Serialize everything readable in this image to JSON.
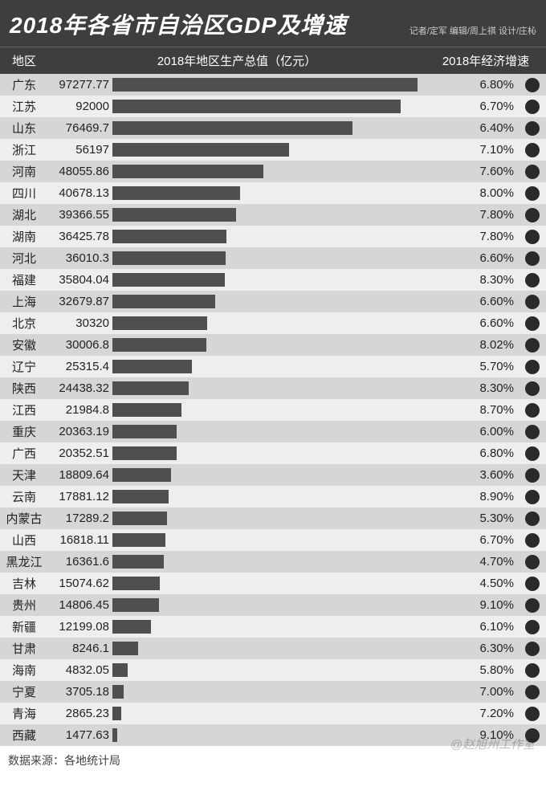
{
  "title": "2018年各省市自治区GDP及增速",
  "credits": "记者/定军  编辑/周上祺  设计/庄杺",
  "columns": {
    "region": "地区",
    "gdp": "2018年地区生产总值（亿元）",
    "growth": "2018年经济增速"
  },
  "bar_color": "#4f4f4f",
  "dot_color": "#2a2a2a",
  "row_colors": {
    "even": "#d6d6d6",
    "odd": "#eeeeee"
  },
  "title_bg": "#3e3e3e",
  "title_color": "#ffffff",
  "max_bar_value": 97277.77,
  "rows": [
    {
      "region": "广东",
      "gdp": "97277.77",
      "gdp_num": 97277.77,
      "growth": "6.80%"
    },
    {
      "region": "江苏",
      "gdp": "92000",
      "gdp_num": 92000,
      "growth": "6.70%"
    },
    {
      "region": "山东",
      "gdp": "76469.7",
      "gdp_num": 76469.7,
      "growth": "6.40%"
    },
    {
      "region": "浙江",
      "gdp": "56197",
      "gdp_num": 56197,
      "growth": "7.10%"
    },
    {
      "region": "河南",
      "gdp": "48055.86",
      "gdp_num": 48055.86,
      "growth": "7.60%"
    },
    {
      "region": "四川",
      "gdp": "40678.13",
      "gdp_num": 40678.13,
      "growth": "8.00%"
    },
    {
      "region": "湖北",
      "gdp": "39366.55",
      "gdp_num": 39366.55,
      "growth": "7.80%"
    },
    {
      "region": "湖南",
      "gdp": "36425.78",
      "gdp_num": 36425.78,
      "growth": "7.80%"
    },
    {
      "region": "河北",
      "gdp": "36010.3",
      "gdp_num": 36010.3,
      "growth": "6.60%"
    },
    {
      "region": "福建",
      "gdp": "35804.04",
      "gdp_num": 35804.04,
      "growth": "8.30%"
    },
    {
      "region": "上海",
      "gdp": "32679.87",
      "gdp_num": 32679.87,
      "growth": "6.60%"
    },
    {
      "region": "北京",
      "gdp": "30320",
      "gdp_num": 30320,
      "growth": "6.60%"
    },
    {
      "region": "安徽",
      "gdp": "30006.8",
      "gdp_num": 30006.8,
      "growth": "8.02%"
    },
    {
      "region": "辽宁",
      "gdp": "25315.4",
      "gdp_num": 25315.4,
      "growth": "5.70%"
    },
    {
      "region": "陕西",
      "gdp": "24438.32",
      "gdp_num": 24438.32,
      "growth": "8.30%"
    },
    {
      "region": "江西",
      "gdp": "21984.8",
      "gdp_num": 21984.8,
      "growth": "8.70%"
    },
    {
      "region": "重庆",
      "gdp": "20363.19",
      "gdp_num": 20363.19,
      "growth": "6.00%"
    },
    {
      "region": "广西",
      "gdp": "20352.51",
      "gdp_num": 20352.51,
      "growth": "6.80%"
    },
    {
      "region": "天津",
      "gdp": "18809.64",
      "gdp_num": 18809.64,
      "growth": "3.60%"
    },
    {
      "region": "云南",
      "gdp": "17881.12",
      "gdp_num": 17881.12,
      "growth": "8.90%"
    },
    {
      "region": "内蒙古",
      "gdp": "17289.2",
      "gdp_num": 17289.2,
      "growth": "5.30%"
    },
    {
      "region": "山西",
      "gdp": "16818.11",
      "gdp_num": 16818.11,
      "growth": "6.70%"
    },
    {
      "region": "黑龙江",
      "gdp": "16361.6",
      "gdp_num": 16361.6,
      "growth": "4.70%"
    },
    {
      "region": "吉林",
      "gdp": "15074.62",
      "gdp_num": 15074.62,
      "growth": "4.50%"
    },
    {
      "region": "贵州",
      "gdp": "14806.45",
      "gdp_num": 14806.45,
      "growth": "9.10%"
    },
    {
      "region": "新疆",
      "gdp": "12199.08",
      "gdp_num": 12199.08,
      "growth": "6.10%"
    },
    {
      "region": "甘肃",
      "gdp": "8246.1",
      "gdp_num": 8246.1,
      "growth": "6.30%"
    },
    {
      "region": "海南",
      "gdp": "4832.05",
      "gdp_num": 4832.05,
      "growth": "5.80%"
    },
    {
      "region": "宁夏",
      "gdp": "3705.18",
      "gdp_num": 3705.18,
      "growth": "7.00%"
    },
    {
      "region": "青海",
      "gdp": "2865.23",
      "gdp_num": 2865.23,
      "growth": "7.20%"
    },
    {
      "region": "西藏",
      "gdp": "1477.63",
      "gdp_num": 1477.63,
      "growth": "9.10%"
    }
  ],
  "footer": "数据来源：各地统计局",
  "watermark": "@赵旭州工作室"
}
